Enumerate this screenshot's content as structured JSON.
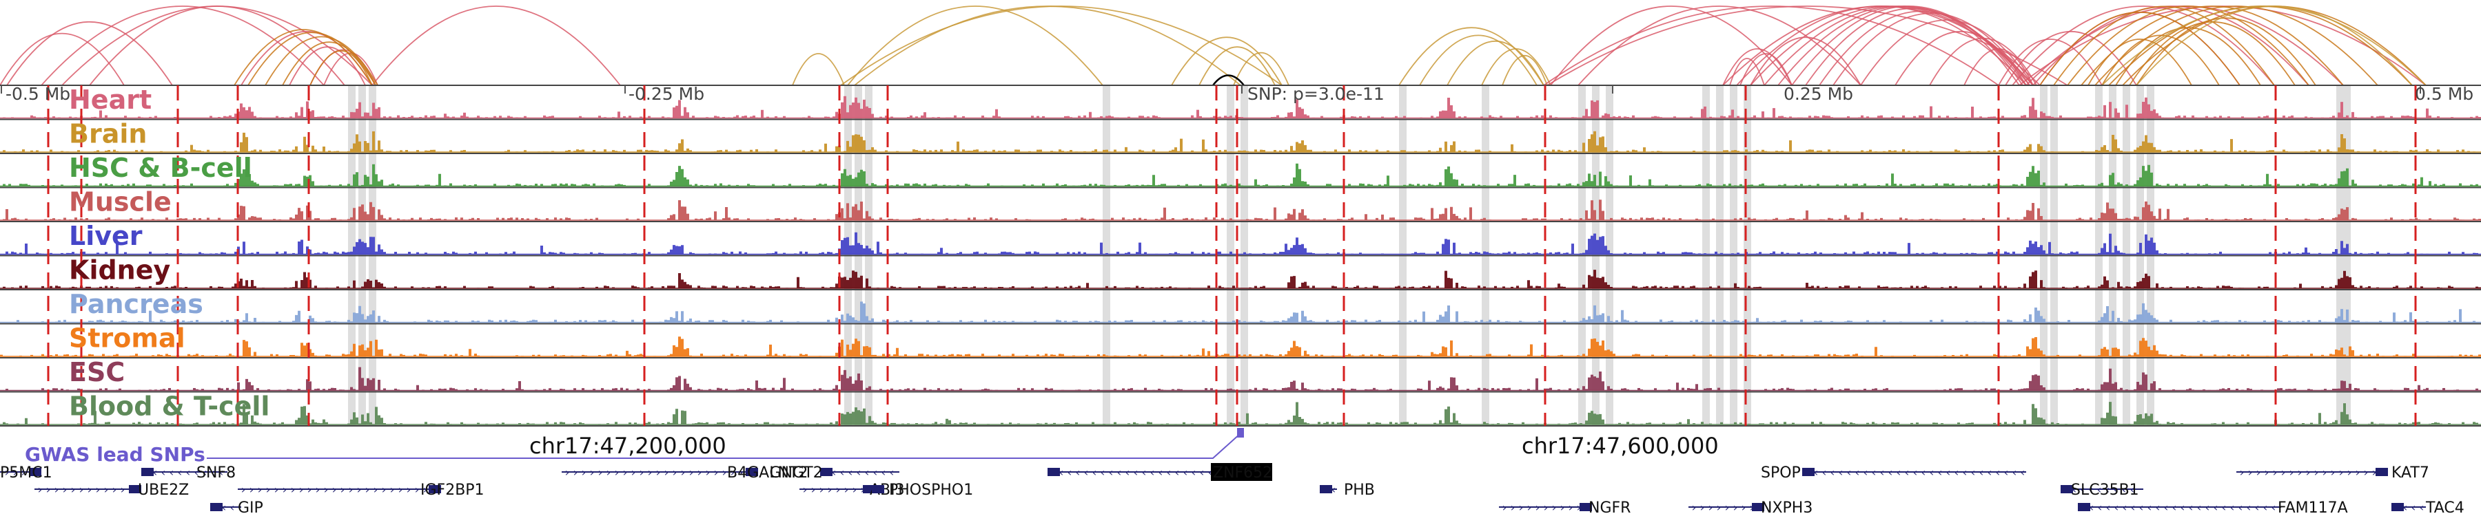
{
  "axis": {
    "left_label": "-0.5 Mb",
    "left_mid_label": "-0.25 Mb",
    "snp_label": "SNP: p=3.0e-11",
    "right_mid_label": "0.25 Mb",
    "right_label": "0.5 Mb"
  },
  "coordinates": {
    "left": "chr17:47,200,000",
    "right": "chr17:47,600,000"
  },
  "gwas": {
    "label": "GWAS lead SNPs",
    "color": "#6a5acd"
  },
  "tracks": [
    {
      "name": "Heart",
      "color": "#d4627a"
    },
    {
      "name": "Brain",
      "color": "#c9942a"
    },
    {
      "name": "HSC & B-cell",
      "color": "#4a9e45"
    },
    {
      "name": "Muscle",
      "color": "#c55a5a"
    },
    {
      "name": "Liver",
      "color": "#4646c8"
    },
    {
      "name": "Kidney",
      "color": "#6b0f16"
    },
    {
      "name": "Pancreas",
      "color": "#88a6d8"
    },
    {
      "name": "Stromal",
      "color": "#f07c1a"
    },
    {
      "name": "ESC",
      "color": "#8e3d5a"
    },
    {
      "name": "Blood & T-cell",
      "color": "#5f8a5a"
    }
  ],
  "genes": [
    {
      "name": "P5MC1",
      "row": 0,
      "strand": "+",
      "highlight": false
    },
    {
      "name": "SNF8",
      "row": 0,
      "strand": "-",
      "highlight": false
    },
    {
      "name": "B4GALNT2",
      "row": 0,
      "strand": "+",
      "highlight": false
    },
    {
      "name": "GNGT2",
      "row": 0,
      "strand": "-",
      "highlight": false
    },
    {
      "name": "ZNF652",
      "row": 0,
      "strand": "-",
      "highlight": true
    },
    {
      "name": "SPOP",
      "row": 0,
      "strand": "-",
      "highlight": false
    },
    {
      "name": "KAT7",
      "row": 0,
      "strand": "+",
      "highlight": false
    },
    {
      "name": "UBE2Z",
      "row": 1,
      "strand": "+",
      "highlight": false
    },
    {
      "name": "IGF2BP1",
      "row": 1,
      "strand": "+",
      "highlight": false
    },
    {
      "name": "ABI3",
      "row": 1,
      "strand": "+",
      "highlight": false
    },
    {
      "name": "PHOSPHO1",
      "row": 1,
      "strand": "-",
      "highlight": false
    },
    {
      "name": "PHB",
      "row": 1,
      "strand": "-",
      "highlight": false
    },
    {
      "name": "SLC35B1",
      "row": 1,
      "strand": "-",
      "highlight": false
    },
    {
      "name": "GIP",
      "row": 2,
      "strand": "-",
      "highlight": false
    },
    {
      "name": "NGFR",
      "row": 2,
      "strand": "+",
      "highlight": false
    },
    {
      "name": "NXPH3",
      "row": 2,
      "strand": "+",
      "highlight": false
    },
    {
      "name": "FAM117A",
      "row": 2,
      "strand": "-",
      "highlight": false
    },
    {
      "name": "TAC4",
      "row": 2,
      "strand": "-",
      "highlight": false
    }
  ],
  "colors": {
    "marker_line": "#d62020",
    "highlight_band": "#dedede",
    "track_border": "#444444",
    "gene_body": "#1f1f6e",
    "arc_red": "#d95a6a",
    "arc_gold": "#c99a3a",
    "arc_orange": "#c9781a"
  }
}
